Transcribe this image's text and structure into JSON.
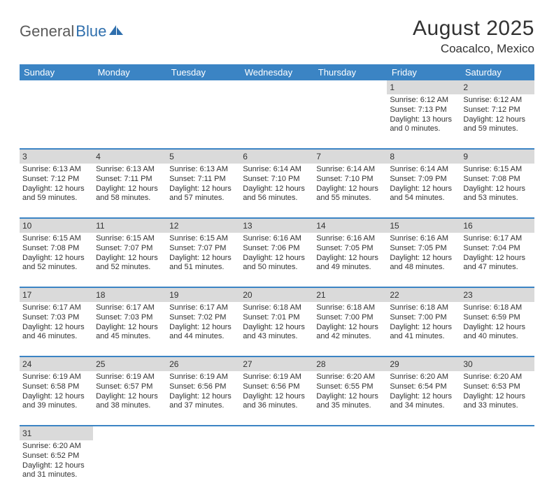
{
  "logo": {
    "part1": "General",
    "part2": "Blue",
    "part1_color": "#5a5a5a",
    "part2_color": "#2f6fad"
  },
  "title": "August 2025",
  "location": "Coacalco, Mexico",
  "colors": {
    "header_bg": "#3b84c4",
    "header_text": "#ffffff",
    "daynum_bg": "#dadada",
    "border": "#3b84c4",
    "text": "#323232",
    "page_bg": "#ffffff"
  },
  "day_headers": [
    "Sunday",
    "Monday",
    "Tuesday",
    "Wednesday",
    "Thursday",
    "Friday",
    "Saturday"
  ],
  "weeks": [
    [
      null,
      null,
      null,
      null,
      null,
      {
        "n": "1",
        "sr": "Sunrise: 6:12 AM",
        "ss": "Sunset: 7:13 PM",
        "dl1": "Daylight: 13 hours",
        "dl2": "and 0 minutes."
      },
      {
        "n": "2",
        "sr": "Sunrise: 6:12 AM",
        "ss": "Sunset: 7:12 PM",
        "dl1": "Daylight: 12 hours",
        "dl2": "and 59 minutes."
      }
    ],
    [
      {
        "n": "3",
        "sr": "Sunrise: 6:13 AM",
        "ss": "Sunset: 7:12 PM",
        "dl1": "Daylight: 12 hours",
        "dl2": "and 59 minutes."
      },
      {
        "n": "4",
        "sr": "Sunrise: 6:13 AM",
        "ss": "Sunset: 7:11 PM",
        "dl1": "Daylight: 12 hours",
        "dl2": "and 58 minutes."
      },
      {
        "n": "5",
        "sr": "Sunrise: 6:13 AM",
        "ss": "Sunset: 7:11 PM",
        "dl1": "Daylight: 12 hours",
        "dl2": "and 57 minutes."
      },
      {
        "n": "6",
        "sr": "Sunrise: 6:14 AM",
        "ss": "Sunset: 7:10 PM",
        "dl1": "Daylight: 12 hours",
        "dl2": "and 56 minutes."
      },
      {
        "n": "7",
        "sr": "Sunrise: 6:14 AM",
        "ss": "Sunset: 7:10 PM",
        "dl1": "Daylight: 12 hours",
        "dl2": "and 55 minutes."
      },
      {
        "n": "8",
        "sr": "Sunrise: 6:14 AM",
        "ss": "Sunset: 7:09 PM",
        "dl1": "Daylight: 12 hours",
        "dl2": "and 54 minutes."
      },
      {
        "n": "9",
        "sr": "Sunrise: 6:15 AM",
        "ss": "Sunset: 7:08 PM",
        "dl1": "Daylight: 12 hours",
        "dl2": "and 53 minutes."
      }
    ],
    [
      {
        "n": "10",
        "sr": "Sunrise: 6:15 AM",
        "ss": "Sunset: 7:08 PM",
        "dl1": "Daylight: 12 hours",
        "dl2": "and 52 minutes."
      },
      {
        "n": "11",
        "sr": "Sunrise: 6:15 AM",
        "ss": "Sunset: 7:07 PM",
        "dl1": "Daylight: 12 hours",
        "dl2": "and 52 minutes."
      },
      {
        "n": "12",
        "sr": "Sunrise: 6:15 AM",
        "ss": "Sunset: 7:07 PM",
        "dl1": "Daylight: 12 hours",
        "dl2": "and 51 minutes."
      },
      {
        "n": "13",
        "sr": "Sunrise: 6:16 AM",
        "ss": "Sunset: 7:06 PM",
        "dl1": "Daylight: 12 hours",
        "dl2": "and 50 minutes."
      },
      {
        "n": "14",
        "sr": "Sunrise: 6:16 AM",
        "ss": "Sunset: 7:05 PM",
        "dl1": "Daylight: 12 hours",
        "dl2": "and 49 minutes."
      },
      {
        "n": "15",
        "sr": "Sunrise: 6:16 AM",
        "ss": "Sunset: 7:05 PM",
        "dl1": "Daylight: 12 hours",
        "dl2": "and 48 minutes."
      },
      {
        "n": "16",
        "sr": "Sunrise: 6:17 AM",
        "ss": "Sunset: 7:04 PM",
        "dl1": "Daylight: 12 hours",
        "dl2": "and 47 minutes."
      }
    ],
    [
      {
        "n": "17",
        "sr": "Sunrise: 6:17 AM",
        "ss": "Sunset: 7:03 PM",
        "dl1": "Daylight: 12 hours",
        "dl2": "and 46 minutes."
      },
      {
        "n": "18",
        "sr": "Sunrise: 6:17 AM",
        "ss": "Sunset: 7:03 PM",
        "dl1": "Daylight: 12 hours",
        "dl2": "and 45 minutes."
      },
      {
        "n": "19",
        "sr": "Sunrise: 6:17 AM",
        "ss": "Sunset: 7:02 PM",
        "dl1": "Daylight: 12 hours",
        "dl2": "and 44 minutes."
      },
      {
        "n": "20",
        "sr": "Sunrise: 6:18 AM",
        "ss": "Sunset: 7:01 PM",
        "dl1": "Daylight: 12 hours",
        "dl2": "and 43 minutes."
      },
      {
        "n": "21",
        "sr": "Sunrise: 6:18 AM",
        "ss": "Sunset: 7:00 PM",
        "dl1": "Daylight: 12 hours",
        "dl2": "and 42 minutes."
      },
      {
        "n": "22",
        "sr": "Sunrise: 6:18 AM",
        "ss": "Sunset: 7:00 PM",
        "dl1": "Daylight: 12 hours",
        "dl2": "and 41 minutes."
      },
      {
        "n": "23",
        "sr": "Sunrise: 6:18 AM",
        "ss": "Sunset: 6:59 PM",
        "dl1": "Daylight: 12 hours",
        "dl2": "and 40 minutes."
      }
    ],
    [
      {
        "n": "24",
        "sr": "Sunrise: 6:19 AM",
        "ss": "Sunset: 6:58 PM",
        "dl1": "Daylight: 12 hours",
        "dl2": "and 39 minutes."
      },
      {
        "n": "25",
        "sr": "Sunrise: 6:19 AM",
        "ss": "Sunset: 6:57 PM",
        "dl1": "Daylight: 12 hours",
        "dl2": "and 38 minutes."
      },
      {
        "n": "26",
        "sr": "Sunrise: 6:19 AM",
        "ss": "Sunset: 6:56 PM",
        "dl1": "Daylight: 12 hours",
        "dl2": "and 37 minutes."
      },
      {
        "n": "27",
        "sr": "Sunrise: 6:19 AM",
        "ss": "Sunset: 6:56 PM",
        "dl1": "Daylight: 12 hours",
        "dl2": "and 36 minutes."
      },
      {
        "n": "28",
        "sr": "Sunrise: 6:20 AM",
        "ss": "Sunset: 6:55 PM",
        "dl1": "Daylight: 12 hours",
        "dl2": "and 35 minutes."
      },
      {
        "n": "29",
        "sr": "Sunrise: 6:20 AM",
        "ss": "Sunset: 6:54 PM",
        "dl1": "Daylight: 12 hours",
        "dl2": "and 34 minutes."
      },
      {
        "n": "30",
        "sr": "Sunrise: 6:20 AM",
        "ss": "Sunset: 6:53 PM",
        "dl1": "Daylight: 12 hours",
        "dl2": "and 33 minutes."
      }
    ],
    [
      {
        "n": "31",
        "sr": "Sunrise: 6:20 AM",
        "ss": "Sunset: 6:52 PM",
        "dl1": "Daylight: 12 hours",
        "dl2": "and 31 minutes."
      },
      null,
      null,
      null,
      null,
      null,
      null
    ]
  ]
}
